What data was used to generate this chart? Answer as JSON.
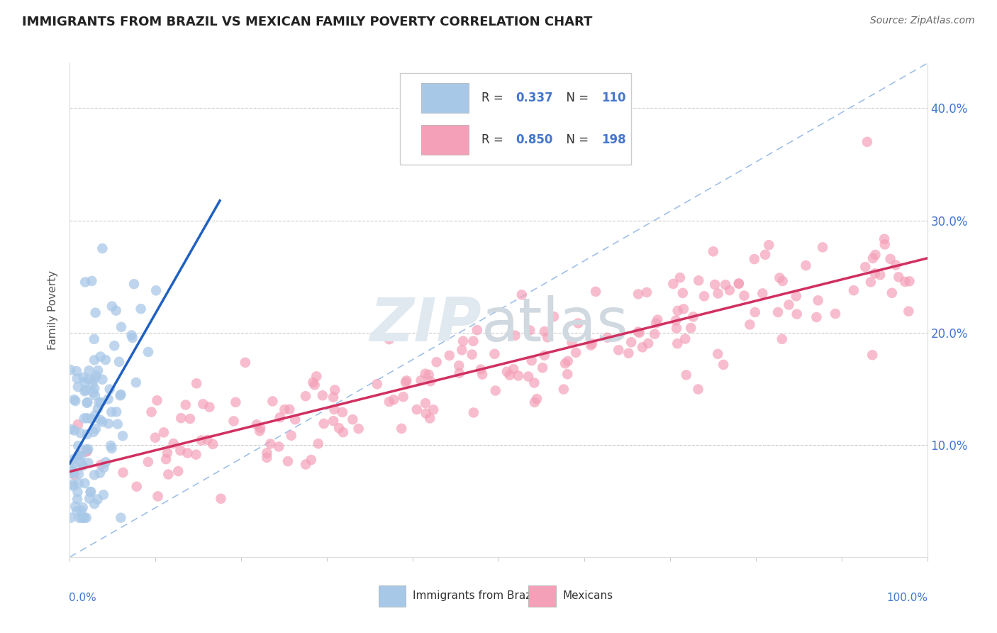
{
  "title": "IMMIGRANTS FROM BRAZIL VS MEXICAN FAMILY POVERTY CORRELATION CHART",
  "source": "Source: ZipAtlas.com",
  "ylabel": "Family Poverty",
  "legend_brazil_R": "0.337",
  "legend_brazil_N": "110",
  "legend_mexican_R": "0.850",
  "legend_mexican_N": "198",
  "legend_label_brazil": "Immigrants from Brazil",
  "legend_label_mexican": "Mexicans",
  "brazil_color": "#a8c8e8",
  "mexican_color": "#f4a0b8",
  "brazil_line_color": "#2060c0",
  "mexican_line_color": "#d03060",
  "diagonal_color": "#a0c0e8",
  "xlim": [
    0.0,
    1.0
  ],
  "ylim": [
    0.0,
    0.44
  ],
  "background_color": "#ffffff"
}
